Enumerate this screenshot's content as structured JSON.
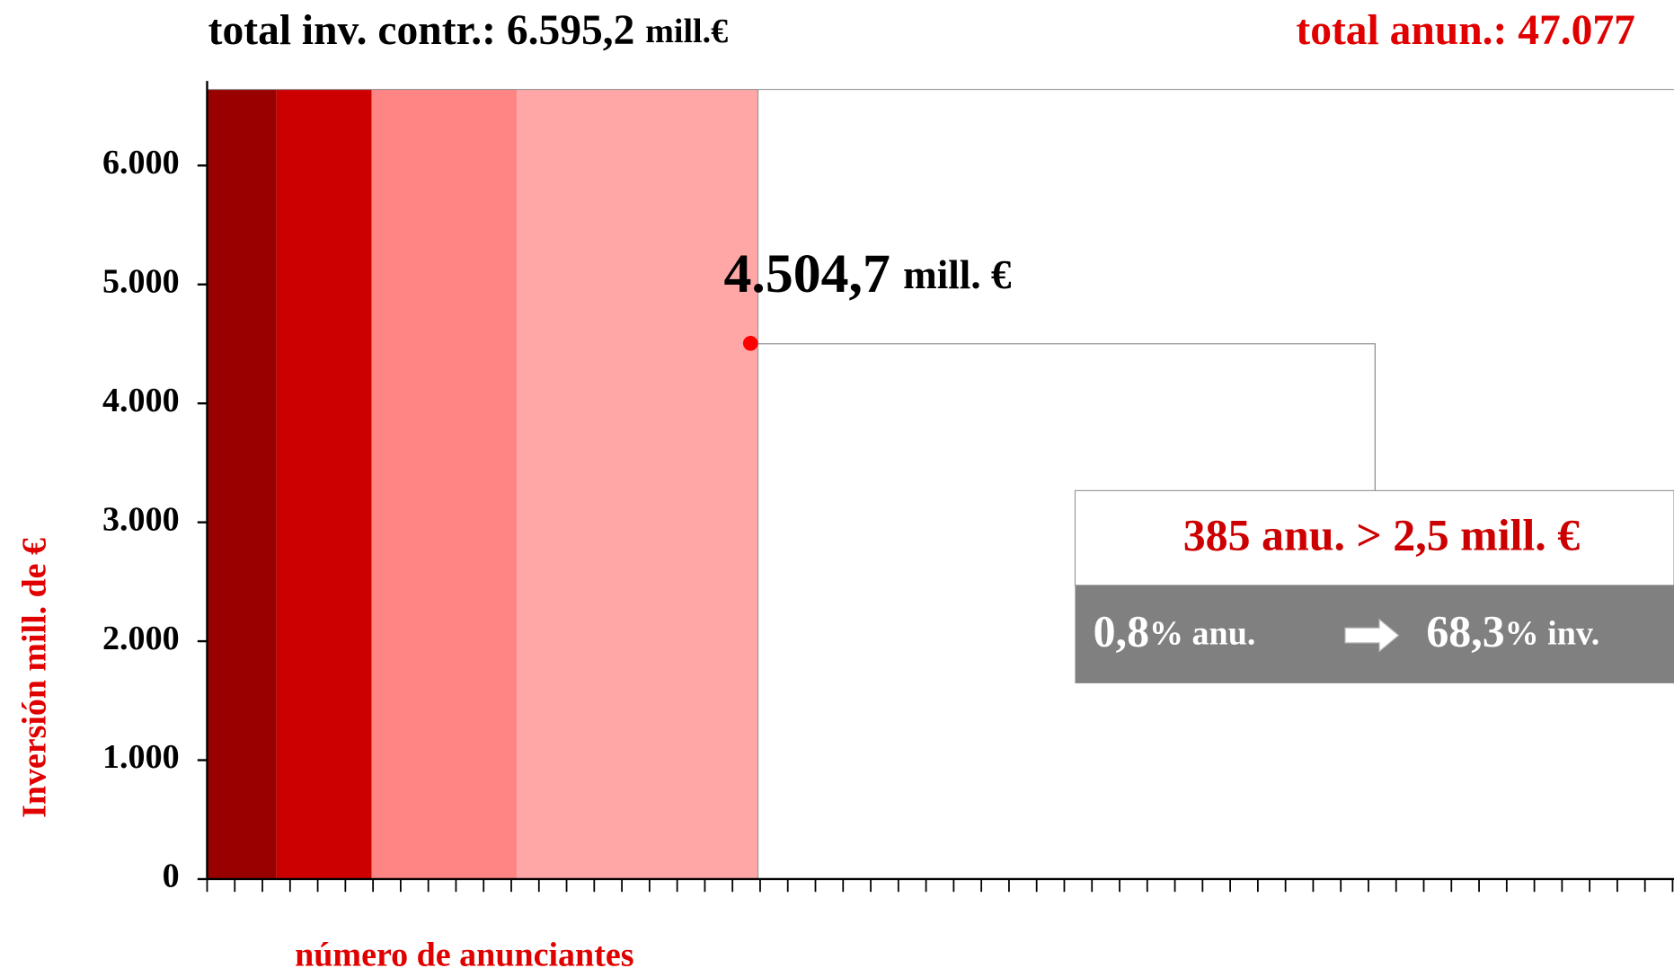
{
  "chart_data": {
    "type": "area",
    "title": "total inv. contr.: 6.595,2",
    "title_unit": "mill.€",
    "subtitle": "total anun.: 47.077",
    "ylabel": "Inversión mill. de €",
    "xlabel": "número de anunciantes",
    "ylim": [
      0,
      6640
    ],
    "yticks": [
      0,
      {
        "value": 1000,
        "label": "1.000"
      },
      {
        "value": 2000,
        "label": "2.000"
      },
      {
        "value": 3000,
        "label": "3.000"
      },
      {
        "value": 4000,
        "label": "4.000"
      },
      {
        "value": 5000,
        "label": "5.000"
      },
      {
        "value": 6000,
        "label": "6.000"
      }
    ],
    "point": {
      "value": 4504.7,
      "label": "4.504,7",
      "unit": "mill. €",
      "color": "#ff0000"
    },
    "box": {
      "line1": "385 anu.  >  2,5 mill. €",
      "left_value": "0,8",
      "left_unit": "% anu.",
      "right_value": "68,3",
      "right_unit": "% inv."
    }
  }
}
